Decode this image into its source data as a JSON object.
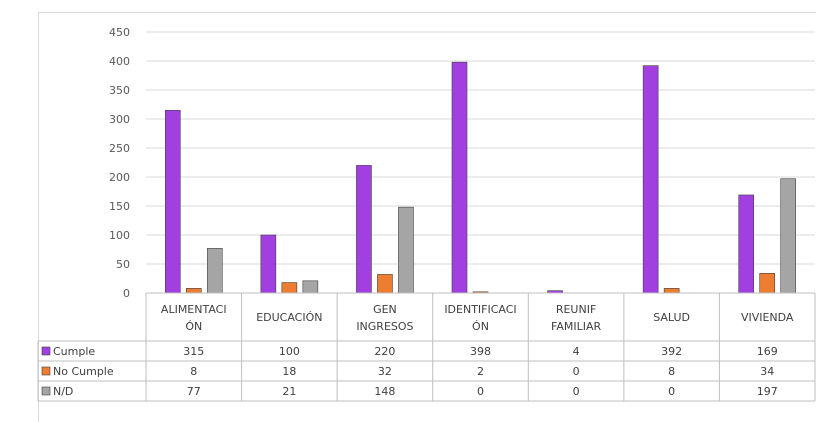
{
  "chart_data": {
    "type": "bar",
    "title": "",
    "xlabel": "",
    "ylabel": "",
    "ylim": [
      0,
      450
    ],
    "yticks": [
      0,
      50,
      100,
      150,
      200,
      250,
      300,
      350,
      400,
      450
    ],
    "grid": true,
    "legend": "data-table-left",
    "categories": [
      [
        "ALIMENTACI",
        "ÓN"
      ],
      [
        "EDUCACIÓN"
      ],
      [
        "GEN",
        "INGRESOS"
      ],
      [
        "IDENTIFICACI",
        "ÓN"
      ],
      [
        "REUNIF",
        "FAMILIAR"
      ],
      [
        "SALUD"
      ],
      [
        "VIVIENDA"
      ]
    ],
    "series": [
      {
        "name": "Cumple",
        "color": "#a23fe0",
        "values": [
          315,
          100,
          220,
          398,
          4,
          392,
          169
        ]
      },
      {
        "name": "No Cumple",
        "color": "#ed7d31",
        "values": [
          8,
          18,
          32,
          2,
          0,
          8,
          34
        ]
      },
      {
        "name": "N/D",
        "color": "#a5a5a5",
        "values": [
          77,
          21,
          148,
          0,
          0,
          0,
          197
        ]
      }
    ]
  }
}
